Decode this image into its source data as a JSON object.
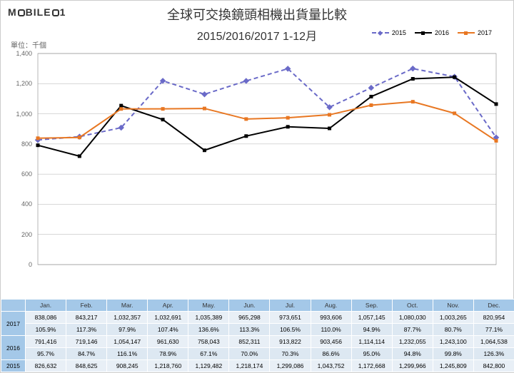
{
  "logo_text": "MOBILE01",
  "title": "全球可交換鏡頭相機出貨量比較",
  "subtitle": "2015/2016/2017 1-12月",
  "unit_label": "單位：千個",
  "chart": {
    "type": "line",
    "x_categories": [
      "Jan.",
      "Feb.",
      "Mar.",
      "Apr.",
      "May.",
      "Jun.",
      "Jul.",
      "Aug.",
      "Sep.",
      "Oct.",
      "Nov.",
      "Dec."
    ],
    "ylim": [
      0,
      1400
    ],
    "ytick_step": 200,
    "yticks": [
      0,
      200,
      400,
      600,
      800,
      1000,
      1200,
      1400
    ],
    "grid_color": "#b0b0b0",
    "background_color": "#ffffff",
    "series": [
      {
        "name": "2015",
        "color": "#6a6ac8",
        "dash": "6,4",
        "marker": "diamond",
        "values": [
          826.632,
          848.625,
          908.245,
          1218.76,
          1129.482,
          1218.174,
          1299.086,
          1043.752,
          1172.668,
          1299.966,
          1245.809,
          842.8
        ]
      },
      {
        "name": "2016",
        "color": "#000000",
        "dash": "",
        "marker": "square",
        "values": [
          791.416,
          719.146,
          1054.147,
          961.63,
          758.043,
          852.311,
          913.822,
          903.456,
          1114.114,
          1232.055,
          1243.1,
          1064.538
        ]
      },
      {
        "name": "2017",
        "color": "#e87722",
        "dash": "",
        "marker": "square",
        "values": [
          838.086,
          843.217,
          1032.357,
          1032.691,
          1035.389,
          965.298,
          973.651,
          993.606,
          1057.145,
          1080.03,
          1003.265,
          820.954
        ]
      }
    ],
    "title_fontsize": 18,
    "label_fontsize": 10,
    "line_width": 2
  },
  "table": {
    "columns": [
      "",
      "Jan.",
      "Feb.",
      "Mar.",
      "Apr.",
      "May.",
      "Jun.",
      "Jul.",
      "Aug.",
      "Sep.",
      "Oct.",
      "Nov.",
      "Dec."
    ],
    "rows": [
      {
        "label": "2017",
        "values": [
          "838,086",
          "843,217",
          "1,032,357",
          "1,032,691",
          "1,035,389",
          "965,298",
          "973,651",
          "993,606",
          "1,057,145",
          "1,080,030",
          "1,003,265",
          "820,954"
        ]
      },
      {
        "label": "",
        "values": [
          "105.9%",
          "117.3%",
          "97.9%",
          "107.4%",
          "136.6%",
          "113.3%",
          "106.5%",
          "110.0%",
          "94.9%",
          "87.7%",
          "80.7%",
          "77.1%"
        ]
      },
      {
        "label": "2016",
        "values": [
          "791,416",
          "719,146",
          "1,054,147",
          "961,630",
          "758,043",
          "852,311",
          "913,822",
          "903,456",
          "1,114,114",
          "1,232,055",
          "1,243,100",
          "1,064,538"
        ]
      },
      {
        "label": "",
        "values": [
          "95.7%",
          "84.7%",
          "116.1%",
          "78.9%",
          "67.1%",
          "70.0%",
          "70.3%",
          "86.6%",
          "95.0%",
          "94.8%",
          "99.8%",
          "126.3%"
        ]
      },
      {
        "label": "2015",
        "values": [
          "826,632",
          "848,625",
          "908,245",
          "1,218,760",
          "1,129,482",
          "1,218,174",
          "1,299,086",
          "1,043,752",
          "1,172,668",
          "1,299,966",
          "1,245,809",
          "842,800"
        ]
      }
    ],
    "header_bg": "#a4c8e8",
    "cell_bg": "#e8eff6",
    "cell_bg_alt": "#dde8f2"
  }
}
